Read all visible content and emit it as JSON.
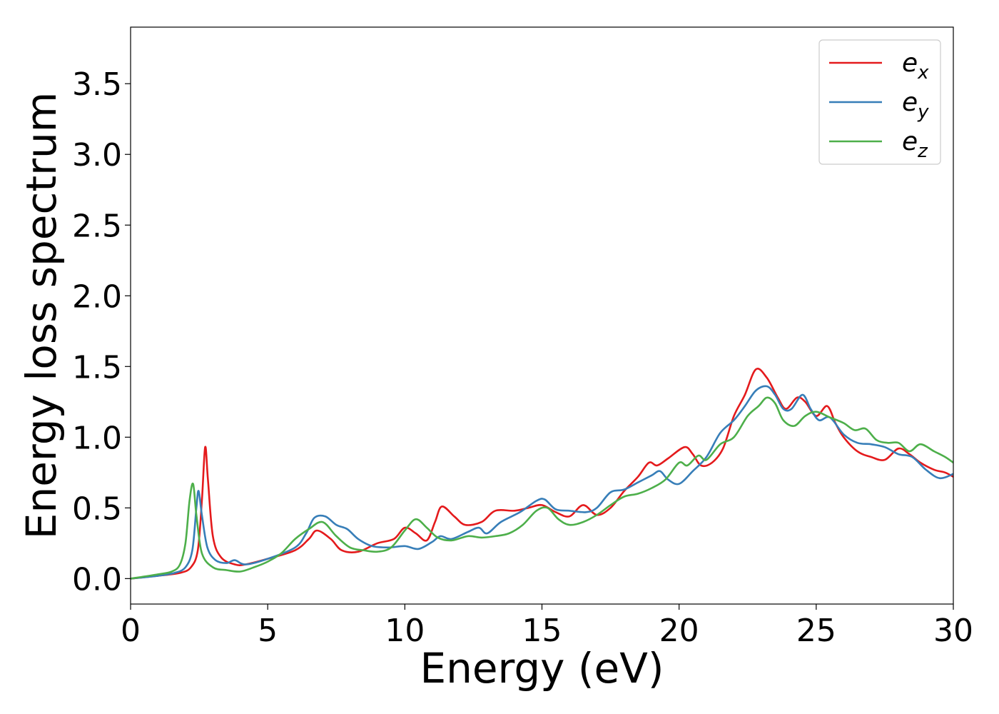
{
  "chart_data": {
    "type": "line",
    "xlabel": "Energy (eV)",
    "ylabel": "Energy loss spectrum",
    "xlim": [
      0,
      30
    ],
    "ylim": [
      -0.18,
      3.9
    ],
    "xticks": [
      0,
      5,
      10,
      15,
      20,
      25,
      30
    ],
    "yticks": [
      0.0,
      0.5,
      1.0,
      1.5,
      2.0,
      2.5,
      3.0,
      3.5
    ],
    "xtick_labels": [
      "0",
      "5",
      "10",
      "15",
      "20",
      "25",
      "30"
    ],
    "ytick_labels": [
      "0.0",
      "0.5",
      "1.0",
      "1.5",
      "2.0",
      "2.5",
      "3.0",
      "3.5"
    ],
    "grid": false,
    "legend_position": "top-right",
    "series": [
      {
        "name": "e_x",
        "label_base": "e",
        "label_sub": "x",
        "color": "#e41a1c",
        "points": [
          [
            0,
            0
          ],
          [
            1,
            0.02
          ],
          [
            1.8,
            0.04
          ],
          [
            2.2,
            0.08
          ],
          [
            2.45,
            0.2
          ],
          [
            2.6,
            0.55
          ],
          [
            2.72,
            0.93
          ],
          [
            2.82,
            0.7
          ],
          [
            3.0,
            0.3
          ],
          [
            3.3,
            0.15
          ],
          [
            3.8,
            0.1
          ],
          [
            4.2,
            0.1
          ],
          [
            5,
            0.14
          ],
          [
            6,
            0.2
          ],
          [
            6.5,
            0.28
          ],
          [
            6.8,
            0.34
          ],
          [
            7.3,
            0.28
          ],
          [
            7.7,
            0.2
          ],
          [
            8.3,
            0.19
          ],
          [
            9,
            0.25
          ],
          [
            9.6,
            0.28
          ],
          [
            10,
            0.36
          ],
          [
            10.4,
            0.32
          ],
          [
            10.8,
            0.27
          ],
          [
            11.1,
            0.4
          ],
          [
            11.35,
            0.51
          ],
          [
            11.8,
            0.44
          ],
          [
            12.2,
            0.38
          ],
          [
            12.8,
            0.4
          ],
          [
            13.3,
            0.48
          ],
          [
            14,
            0.48
          ],
          [
            14.5,
            0.5
          ],
          [
            15,
            0.52
          ],
          [
            15.5,
            0.47
          ],
          [
            16,
            0.44
          ],
          [
            16.5,
            0.52
          ],
          [
            17,
            0.45
          ],
          [
            17.5,
            0.5
          ],
          [
            18,
            0.62
          ],
          [
            18.5,
            0.72
          ],
          [
            18.9,
            0.82
          ],
          [
            19.2,
            0.8
          ],
          [
            19.6,
            0.85
          ],
          [
            20.2,
            0.93
          ],
          [
            20.5,
            0.88
          ],
          [
            20.8,
            0.8
          ],
          [
            21.2,
            0.82
          ],
          [
            21.6,
            0.92
          ],
          [
            22,
            1.15
          ],
          [
            22.4,
            1.3
          ],
          [
            22.8,
            1.48
          ],
          [
            23.2,
            1.42
          ],
          [
            23.6,
            1.28
          ],
          [
            23.9,
            1.2
          ],
          [
            24.3,
            1.28
          ],
          [
            24.6,
            1.25
          ],
          [
            25,
            1.15
          ],
          [
            25.4,
            1.22
          ],
          [
            25.7,
            1.1
          ],
          [
            26,
            1.0
          ],
          [
            26.5,
            0.9
          ],
          [
            27,
            0.86
          ],
          [
            27.5,
            0.84
          ],
          [
            28,
            0.92
          ],
          [
            28.4,
            0.88
          ],
          [
            28.8,
            0.82
          ],
          [
            29.3,
            0.77
          ],
          [
            29.7,
            0.75
          ],
          [
            30,
            0.72
          ]
        ]
      },
      {
        "name": "e_y",
        "label_base": "e",
        "label_sub": "y",
        "color": "#377eb8",
        "points": [
          [
            0,
            0
          ],
          [
            1,
            0.02
          ],
          [
            1.6,
            0.04
          ],
          [
            2.0,
            0.08
          ],
          [
            2.25,
            0.2
          ],
          [
            2.4,
            0.5
          ],
          [
            2.48,
            0.62
          ],
          [
            2.6,
            0.45
          ],
          [
            2.8,
            0.22
          ],
          [
            3.1,
            0.13
          ],
          [
            3.5,
            0.11
          ],
          [
            3.8,
            0.13
          ],
          [
            4.2,
            0.1
          ],
          [
            5,
            0.14
          ],
          [
            6,
            0.22
          ],
          [
            6.4,
            0.32
          ],
          [
            6.7,
            0.43
          ],
          [
            7.1,
            0.44
          ],
          [
            7.5,
            0.38
          ],
          [
            7.9,
            0.35
          ],
          [
            8.3,
            0.28
          ],
          [
            8.8,
            0.23
          ],
          [
            9.4,
            0.22
          ],
          [
            10,
            0.23
          ],
          [
            10.5,
            0.21
          ],
          [
            11,
            0.26
          ],
          [
            11.3,
            0.3
          ],
          [
            11.7,
            0.28
          ],
          [
            12.3,
            0.33
          ],
          [
            12.7,
            0.36
          ],
          [
            13,
            0.32
          ],
          [
            13.5,
            0.4
          ],
          [
            14.2,
            0.47
          ],
          [
            14.8,
            0.55
          ],
          [
            15.1,
            0.56
          ],
          [
            15.5,
            0.49
          ],
          [
            16,
            0.48
          ],
          [
            16.6,
            0.47
          ],
          [
            17,
            0.5
          ],
          [
            17.5,
            0.61
          ],
          [
            18,
            0.63
          ],
          [
            18.5,
            0.68
          ],
          [
            19,
            0.73
          ],
          [
            19.3,
            0.76
          ],
          [
            19.6,
            0.7
          ],
          [
            20,
            0.67
          ],
          [
            20.5,
            0.76
          ],
          [
            21,
            0.86
          ],
          [
            21.5,
            1.03
          ],
          [
            22,
            1.12
          ],
          [
            22.4,
            1.22
          ],
          [
            22.8,
            1.33
          ],
          [
            23.2,
            1.36
          ],
          [
            23.5,
            1.3
          ],
          [
            23.8,
            1.2
          ],
          [
            24.1,
            1.2
          ],
          [
            24.5,
            1.3
          ],
          [
            24.8,
            1.2
          ],
          [
            25.1,
            1.12
          ],
          [
            25.5,
            1.14
          ],
          [
            26,
            1.02
          ],
          [
            26.5,
            0.96
          ],
          [
            27,
            0.95
          ],
          [
            27.5,
            0.93
          ],
          [
            28,
            0.88
          ],
          [
            28.5,
            0.86
          ],
          [
            29,
            0.77
          ],
          [
            29.5,
            0.71
          ],
          [
            30,
            0.74
          ]
        ]
      },
      {
        "name": "e_z",
        "label_base": "e",
        "label_sub": "z",
        "color": "#4daf4a",
        "points": [
          [
            0,
            0
          ],
          [
            1,
            0.03
          ],
          [
            1.5,
            0.05
          ],
          [
            1.8,
            0.1
          ],
          [
            2.0,
            0.25
          ],
          [
            2.15,
            0.55
          ],
          [
            2.28,
            0.67
          ],
          [
            2.4,
            0.45
          ],
          [
            2.6,
            0.18
          ],
          [
            3.0,
            0.08
          ],
          [
            3.5,
            0.06
          ],
          [
            4.0,
            0.05
          ],
          [
            4.5,
            0.08
          ],
          [
            5,
            0.12
          ],
          [
            5.5,
            0.18
          ],
          [
            6,
            0.28
          ],
          [
            6.5,
            0.35
          ],
          [
            7,
            0.4
          ],
          [
            7.5,
            0.3
          ],
          [
            8,
            0.22
          ],
          [
            8.5,
            0.2
          ],
          [
            9,
            0.19
          ],
          [
            9.5,
            0.22
          ],
          [
            10,
            0.34
          ],
          [
            10.4,
            0.42
          ],
          [
            10.8,
            0.36
          ],
          [
            11.2,
            0.29
          ],
          [
            11.7,
            0.27
          ],
          [
            12.3,
            0.3
          ],
          [
            12.8,
            0.29
          ],
          [
            13.3,
            0.3
          ],
          [
            13.8,
            0.32
          ],
          [
            14.3,
            0.38
          ],
          [
            14.8,
            0.48
          ],
          [
            15.2,
            0.5
          ],
          [
            15.6,
            0.42
          ],
          [
            16,
            0.38
          ],
          [
            16.5,
            0.4
          ],
          [
            17,
            0.45
          ],
          [
            17.5,
            0.52
          ],
          [
            18,
            0.58
          ],
          [
            18.5,
            0.6
          ],
          [
            19,
            0.64
          ],
          [
            19.5,
            0.7
          ],
          [
            20,
            0.82
          ],
          [
            20.3,
            0.8
          ],
          [
            20.7,
            0.87
          ],
          [
            21,
            0.84
          ],
          [
            21.5,
            0.95
          ],
          [
            22,
            1.0
          ],
          [
            22.5,
            1.15
          ],
          [
            22.9,
            1.22
          ],
          [
            23.2,
            1.28
          ],
          [
            23.5,
            1.24
          ],
          [
            23.8,
            1.12
          ],
          [
            24.2,
            1.08
          ],
          [
            24.6,
            1.15
          ],
          [
            25,
            1.18
          ],
          [
            25.5,
            1.14
          ],
          [
            26,
            1.1
          ],
          [
            26.4,
            1.05
          ],
          [
            26.8,
            1.06
          ],
          [
            27.2,
            0.98
          ],
          [
            27.6,
            0.96
          ],
          [
            28,
            0.96
          ],
          [
            28.4,
            0.9
          ],
          [
            28.8,
            0.95
          ],
          [
            29.3,
            0.9
          ],
          [
            29.7,
            0.86
          ],
          [
            30,
            0.82
          ]
        ]
      }
    ]
  }
}
